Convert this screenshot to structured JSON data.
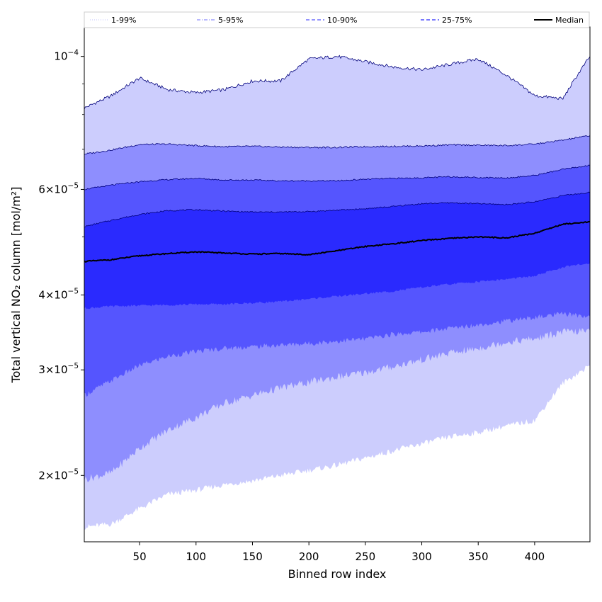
{
  "chart_data": {
    "type": "area",
    "title": "",
    "xlabel": "Binned row index",
    "ylabel": "Total vertical NO₂ column [mol/m²]",
    "yscale": "log",
    "xlim": [
      1,
      449
    ],
    "ylim": [
      1.55e-05,
      0.000112
    ],
    "x_ticks": [
      50,
      100,
      150,
      200,
      250,
      300,
      350,
      400
    ],
    "y_ticks": [
      {
        "value": 2e-05,
        "mantissa": "2",
        "exp": "−5"
      },
      {
        "value": 3e-05,
        "mantissa": "3",
        "exp": "−5"
      },
      {
        "value": 4e-05,
        "mantissa": "4",
        "exp": "−5"
      },
      {
        "value": 6e-05,
        "mantissa": "6",
        "exp": "−5"
      },
      {
        "value": 0.0001,
        "mantissa": "",
        "exp": "−4"
      }
    ],
    "x": [
      1,
      25,
      50,
      75,
      100,
      125,
      150,
      175,
      200,
      225,
      250,
      275,
      300,
      325,
      350,
      375,
      400,
      425,
      449
    ],
    "median": [
      4.55e-05,
      4.58e-05,
      4.65e-05,
      4.69e-05,
      4.72e-05,
      4.7e-05,
      4.68e-05,
      4.69e-05,
      4.67e-05,
      4.74e-05,
      4.82e-05,
      4.87e-05,
      4.93e-05,
      4.97e-05,
      5e-05,
      4.98e-05,
      5.07e-05,
      5.25e-05,
      5.3e-05
    ],
    "series": [
      {
        "name": "1-99%",
        "color": "#cccdfd",
        "lower": [
          1.64e-05,
          1.66e-05,
          1.76e-05,
          1.86e-05,
          1.89e-05,
          1.93e-05,
          1.96e-05,
          2e-05,
          2.04e-05,
          2.08e-05,
          2.14e-05,
          2.2e-05,
          2.26e-05,
          2.32e-05,
          2.36e-05,
          2.42e-05,
          2.47e-05,
          2.85e-05,
          3.05e-05
        ],
        "upper": [
          8.2e-05,
          8.6e-05,
          9.2e-05,
          8.8e-05,
          8.7e-05,
          8.8e-05,
          9.1e-05,
          9.1e-05,
          9.9e-05,
          0.0001,
          9.8e-05,
          9.6e-05,
          9.5e-05,
          9.7e-05,
          9.9e-05,
          9.3e-05,
          8.6e-05,
          8.5e-05,
          0.0001
        ]
      },
      {
        "name": "5-95%",
        "color": "#8e8efe",
        "lower": [
          1.97e-05,
          2.02e-05,
          2.22e-05,
          2.38e-05,
          2.5e-05,
          2.64e-05,
          2.72e-05,
          2.8e-05,
          2.86e-05,
          2.92e-05,
          2.97e-05,
          3.04e-05,
          3.12e-05,
          3.2e-05,
          3.26e-05,
          3.34e-05,
          3.38e-05,
          3.47e-05,
          3.48e-05
        ],
        "upper": [
          6.87e-05,
          6.98e-05,
          7.13e-05,
          7.14e-05,
          7.1e-05,
          7.07e-05,
          7.08e-05,
          7.06e-05,
          7.05e-05,
          7.05e-05,
          7.07e-05,
          7.08e-05,
          7.09e-05,
          7.12e-05,
          7.11e-05,
          7.1e-05,
          7.14e-05,
          7.25e-05,
          7.38e-05
        ]
      },
      {
        "name": "10-90%",
        "color": "#5555fe",
        "lower": [
          2.72e-05,
          2.88e-05,
          3.05e-05,
          3.16e-05,
          3.22e-05,
          3.26e-05,
          3.28e-05,
          3.3e-05,
          3.32e-05,
          3.35e-05,
          3.38e-05,
          3.44e-05,
          3.47e-05,
          3.52e-05,
          3.57e-05,
          3.62e-05,
          3.67e-05,
          3.72e-05,
          3.68e-05
        ],
        "upper": [
          6e-05,
          6.1e-05,
          6.18e-05,
          6.23e-05,
          6.26e-05,
          6.22e-05,
          6.22e-05,
          6.2e-05,
          6.2e-05,
          6.2e-05,
          6.24e-05,
          6.26e-05,
          6.27e-05,
          6.3e-05,
          6.28e-05,
          6.27e-05,
          6.33e-05,
          6.48e-05,
          6.58e-05
        ]
      },
      {
        "name": "25-75%",
        "color": "#2a2afe",
        "lower": [
          3.8e-05,
          3.83e-05,
          3.84e-05,
          3.85e-05,
          3.86e-05,
          3.86e-05,
          3.88e-05,
          3.9e-05,
          3.94e-05,
          3.98e-05,
          4.02e-05,
          4.06e-05,
          4.12e-05,
          4.17e-05,
          4.21e-05,
          4.25e-05,
          4.3e-05,
          4.45e-05,
          4.52e-05
        ],
        "upper": [
          5.2e-05,
          5.33e-05,
          5.45e-05,
          5.53e-05,
          5.55e-05,
          5.52e-05,
          5.5e-05,
          5.5e-05,
          5.51e-05,
          5.54e-05,
          5.57e-05,
          5.62e-05,
          5.68e-05,
          5.7e-05,
          5.68e-05,
          5.66e-05,
          5.72e-05,
          5.86e-05,
          5.93e-05
        ]
      }
    ],
    "legend": {
      "placement": "top",
      "entries": [
        {
          "label": "1-99%",
          "color": "#cccdfd",
          "style": "dotted"
        },
        {
          "label": "5-95%",
          "color": "#8e8efe",
          "style": "dash-dot"
        },
        {
          "label": "10-90%",
          "color": "#5555fe",
          "style": "dashed"
        },
        {
          "label": "25-75%",
          "color": "#2a2afe",
          "style": "dashed"
        },
        {
          "label": "Median",
          "color": "#000000",
          "style": "solid"
        }
      ]
    }
  }
}
